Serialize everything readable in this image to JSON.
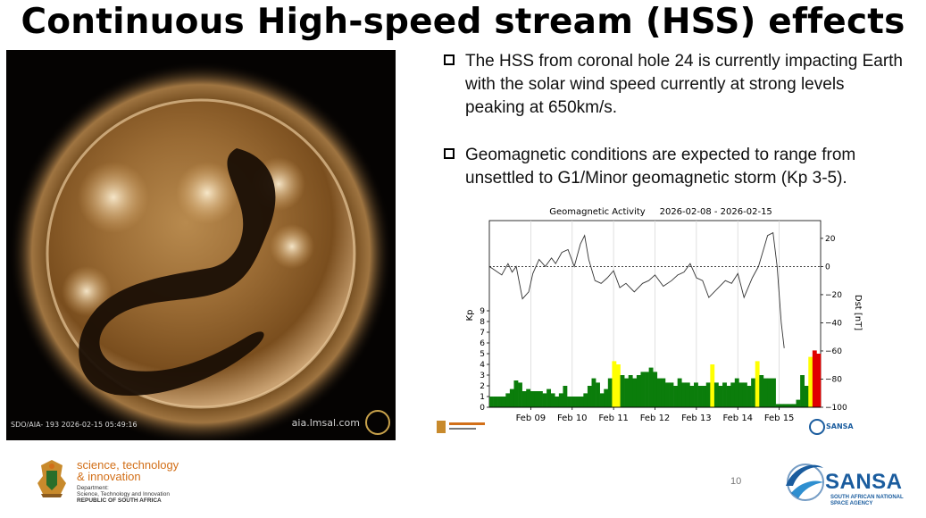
{
  "slide": {
    "title": "Continuous High-speed stream (HSS) effects",
    "page_number": "10",
    "bullets": [
      {
        "text": "The HSS from coronal hole 24 is  currently impacting Earth with the  solar wind speed currently at strong levels peaking at 650km/s."
      },
      {
        "text": "Geomagnetic  conditions are expected  to range from unsettled to G1/Minor geomagnetic storm (Kp 3-5)."
      }
    ]
  },
  "sun_image": {
    "caption": "SDO/AIA- 193 2026-02-15 05:49:16",
    "site": "aia.lmsal.com"
  },
  "footer": {
    "dept_line1": "science, technology",
    "dept_line2": "& innovation",
    "dept_sub1": "Department:",
    "dept_sub2": "Science, Technology and Innovation",
    "dept_sub3": "REPUBLIC OF SOUTH AFRICA",
    "sansa_name": "SANSA",
    "sansa_sub1": "SOUTH AFRICAN NATIONAL",
    "sansa_sub2": "SPACE AGENCY"
  },
  "chart_data": {
    "type": "bar",
    "title": "Geomagnetic Activity     2026-02-08 - 2026-02-15",
    "ylabel": "Kp",
    "y2label": "Dst [nT]",
    "ylim": [
      0,
      9
    ],
    "y2lim": [
      -100,
      25
    ],
    "yticks": [
      "0",
      "1",
      "2",
      "3",
      "4",
      "5",
      "6",
      "7",
      "8",
      "9"
    ],
    "y2ticks": [
      "20",
      "0",
      "−20",
      "−40",
      "−60",
      "−80",
      "−100"
    ],
    "xlim": [
      0,
      8
    ],
    "xticks": [
      {
        "label": "Feb 09",
        "x": 1
      },
      {
        "label": "Feb 10",
        "x": 2
      },
      {
        "label": "Feb 11",
        "x": 3
      },
      {
        "label": "Feb 12",
        "x": 4
      },
      {
        "label": "Feb 13",
        "x": 5
      },
      {
        "label": "Feb 14",
        "x": 6
      },
      {
        "label": "Feb 15",
        "x": 7
      }
    ],
    "kp_colors": {
      "quiet": "#0b7d0b",
      "active": "#ffff00",
      "storm": "#e00000"
    },
    "kp": [
      1.0,
      1.0,
      1.0,
      1.0,
      1.3,
      1.7,
      2.5,
      2.3,
      1.5,
      1.7,
      1.5,
      1.5,
      1.5,
      1.3,
      1.7,
      1.3,
      1.0,
      1.3,
      2.0,
      1.0,
      1.0,
      1.0,
      1.0,
      1.3,
      2.0,
      2.7,
      2.3,
      1.3,
      1.7,
      2.7,
      4.3,
      4.0,
      3.0,
      2.7,
      3.0,
      2.7,
      3.0,
      3.3,
      3.3,
      3.7,
      3.3,
      2.7,
      2.7,
      2.3,
      2.3,
      2.0,
      2.7,
      2.3,
      2.3,
      2.0,
      2.3,
      2.0,
      2.0,
      2.3,
      4.0,
      2.3,
      2.0,
      2.3,
      2.0,
      2.3,
      2.7,
      2.3,
      2.3,
      2.0,
      2.7,
      4.3,
      3.0,
      2.7,
      2.7,
      2.7,
      0.3,
      0.3,
      0.3,
      0.3,
      0.3,
      0.7,
      3.0,
      2.0,
      4.7,
      5.3,
      5.0
    ],
    "dst_x": [
      0,
      0.15,
      0.3,
      0.45,
      0.55,
      0.65,
      0.8,
      0.95,
      1.05,
      1.2,
      1.35,
      1.5,
      1.6,
      1.75,
      1.9,
      2.05,
      2.2,
      2.3,
      2.4,
      2.55,
      2.7,
      2.85,
      3.0,
      3.15,
      3.3,
      3.5,
      3.7,
      3.85,
      4.0,
      4.2,
      4.4,
      4.55,
      4.7,
      4.85,
      5.0,
      5.15,
      5.3,
      5.5,
      5.7,
      5.85,
      6.0,
      6.15,
      6.35,
      6.5,
      6.62,
      6.72,
      6.85,
      6.95,
      7.05,
      7.12
    ],
    "dst": [
      0,
      -3,
      -6,
      2,
      -4,
      0,
      -23,
      -18,
      -5,
      5,
      0,
      6,
      2,
      10,
      12,
      0,
      16,
      22,
      5,
      -10,
      -12,
      -8,
      -3,
      -15,
      -12,
      -18,
      -12,
      -10,
      -6,
      -14,
      -10,
      -6,
      -4,
      2,
      -8,
      -10,
      -22,
      -16,
      -10,
      -12,
      -5,
      -22,
      -8,
      0,
      12,
      22,
      24,
      0,
      -40,
      -58
    ]
  }
}
